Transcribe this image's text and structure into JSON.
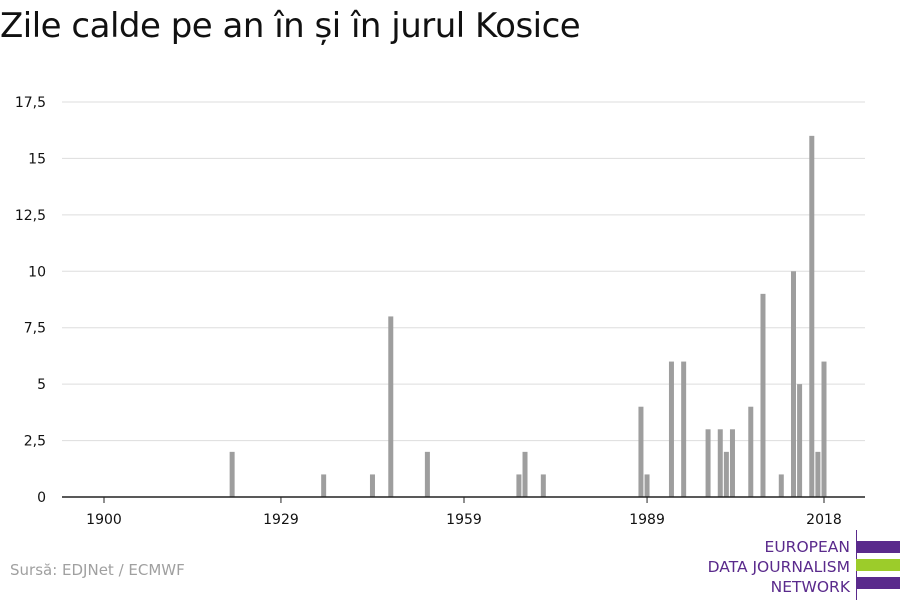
{
  "title": "Zile calde pe an în și în jurul Kosice",
  "source": "Sursă: EDJNet / ECMWF",
  "logo": {
    "lines": [
      "EUROPEAN",
      "DATA JOURNALISM",
      "NETWORK"
    ],
    "colors": [
      "#5a2a8c",
      "#9ccc2a",
      "#5a2a8c"
    ]
  },
  "colors": {
    "bar": "#9e9e9e",
    "grid": "#dddddd",
    "axis": "#222222",
    "text": "#111111"
  },
  "chart_data": {
    "type": "bar",
    "title": "Zile calde pe an în și în jurul Kosice",
    "xlabel": "",
    "ylabel": "",
    "xlim": [
      1900,
      2018
    ],
    "ylim": [
      0,
      17.5
    ],
    "yticks": [
      0,
      2.5,
      5,
      7.5,
      10,
      12.5,
      15,
      17.5
    ],
    "ytick_labels": [
      "0",
      "2,5",
      "5",
      "7,5",
      "10",
      "12,5",
      "15",
      "17,5"
    ],
    "xticks": [
      1900,
      1929,
      1959,
      1989,
      2018
    ],
    "xtick_labels": [
      "1900",
      "1929",
      "1959",
      "1989",
      "2018"
    ],
    "grid": true,
    "x": [
      1921,
      1936,
      1944,
      1947,
      1953,
      1968,
      1969,
      1972,
      1988,
      1989,
      1993,
      1995,
      1999,
      2001,
      2002,
      2003,
      2006,
      2008,
      2011,
      2013,
      2014,
      2016,
      2017,
      2018
    ],
    "values": [
      2,
      1,
      1,
      8,
      2,
      1,
      2,
      1,
      4,
      1,
      6,
      6,
      3,
      3,
      2,
      3,
      4,
      9,
      1,
      10,
      5,
      16,
      2,
      6
    ]
  }
}
